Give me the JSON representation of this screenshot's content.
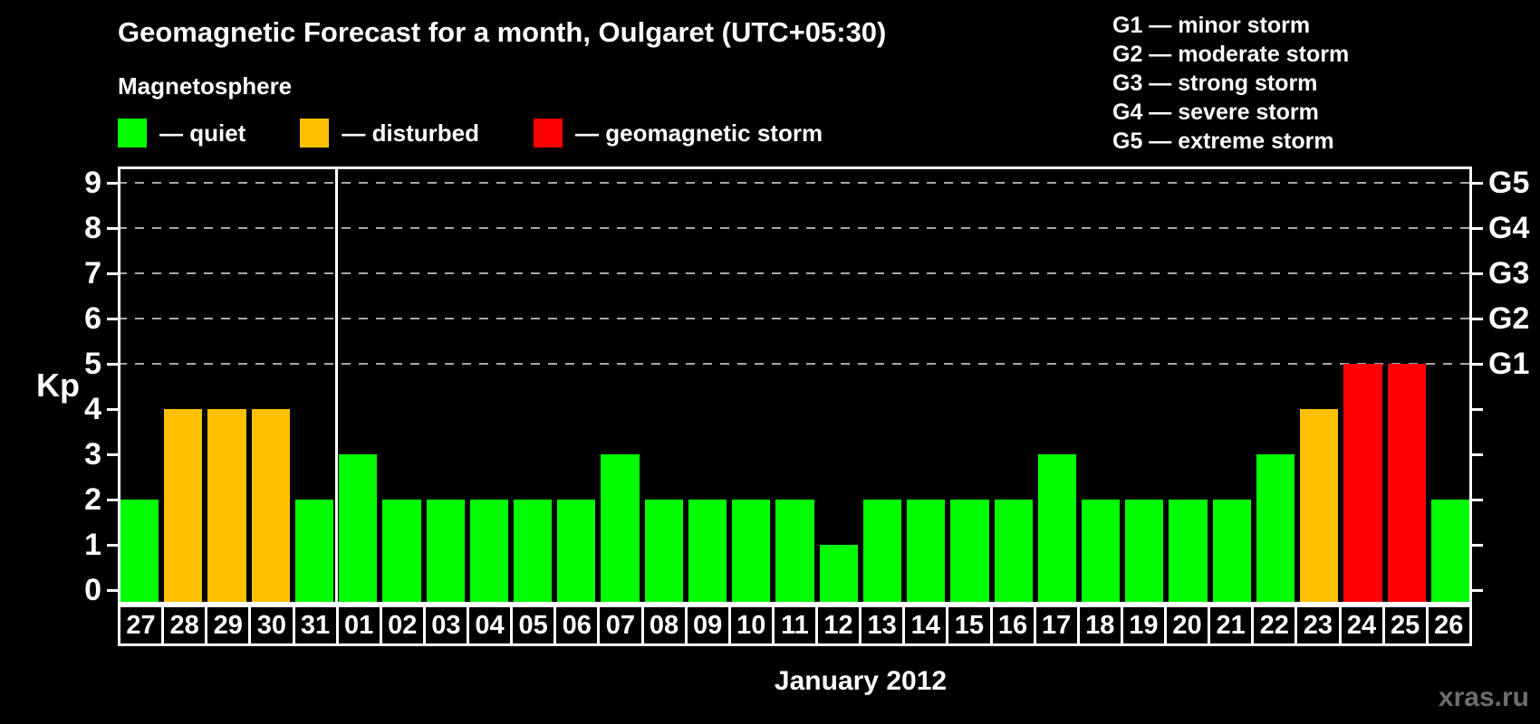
{
  "header": {
    "title": "Geomagnetic Forecast for a month, Oulgaret (UTC+05:30)",
    "subtitle": "Magnetosphere"
  },
  "legend": {
    "items": [
      {
        "name": "quiet",
        "label": "— quiet",
        "color": "#00ff00"
      },
      {
        "name": "disturbed",
        "label": "— disturbed",
        "color": "#ffc000"
      },
      {
        "name": "storm",
        "label": "— geomagnetic storm",
        "color": "#ff0000"
      }
    ]
  },
  "g_legend": {
    "items": [
      "G1 — minor storm",
      "G2 — moderate storm",
      "G3 — strong storm",
      "G4 — severe storm",
      "G5 — extreme storm"
    ]
  },
  "chart_data": {
    "type": "bar",
    "title": "Geomagnetic Forecast for a month, Oulgaret (UTC+05:30)",
    "ylabel": "Kp",
    "xlabel": "January 2012",
    "ylim": [
      0,
      9
    ],
    "yticks": [
      0,
      1,
      2,
      3,
      4,
      5,
      6,
      7,
      8,
      9
    ],
    "gridlines_at": [
      5,
      6,
      7,
      8,
      9
    ],
    "grid_color": "#a8a8a8",
    "right_axis_labels": [
      {
        "kp": 5,
        "label": "G1"
      },
      {
        "kp": 6,
        "label": "G2"
      },
      {
        "kp": 7,
        "label": "G3"
      },
      {
        "kp": 8,
        "label": "G4"
      },
      {
        "kp": 9,
        "label": "G5"
      }
    ],
    "categories": [
      "27",
      "28",
      "29",
      "30",
      "31",
      "01",
      "02",
      "03",
      "04",
      "05",
      "06",
      "07",
      "08",
      "09",
      "10",
      "11",
      "12",
      "13",
      "14",
      "15",
      "16",
      "17",
      "18",
      "19",
      "20",
      "21",
      "22",
      "23",
      "24",
      "25",
      "26"
    ],
    "values": [
      2,
      4,
      4,
      4,
      2,
      3,
      2,
      2,
      2,
      2,
      2,
      3,
      2,
      2,
      2,
      2,
      1,
      2,
      2,
      2,
      2,
      3,
      2,
      2,
      2,
      2,
      3,
      4,
      5,
      5,
      2
    ],
    "statuses": [
      "quiet",
      "disturbed",
      "disturbed",
      "disturbed",
      "quiet",
      "quiet",
      "quiet",
      "quiet",
      "quiet",
      "quiet",
      "quiet",
      "quiet",
      "quiet",
      "quiet",
      "quiet",
      "quiet",
      "quiet",
      "quiet",
      "quiet",
      "quiet",
      "quiet",
      "quiet",
      "quiet",
      "quiet",
      "quiet",
      "quiet",
      "quiet",
      "disturbed",
      "storm",
      "storm",
      "quiet"
    ],
    "status_colors": {
      "quiet": "#00ff00",
      "disturbed": "#ffc000",
      "storm": "#ff0000"
    },
    "month_boundary_after_index": 4
  },
  "footer": {
    "caption": "January 2012",
    "watermark": "xras.ru"
  }
}
